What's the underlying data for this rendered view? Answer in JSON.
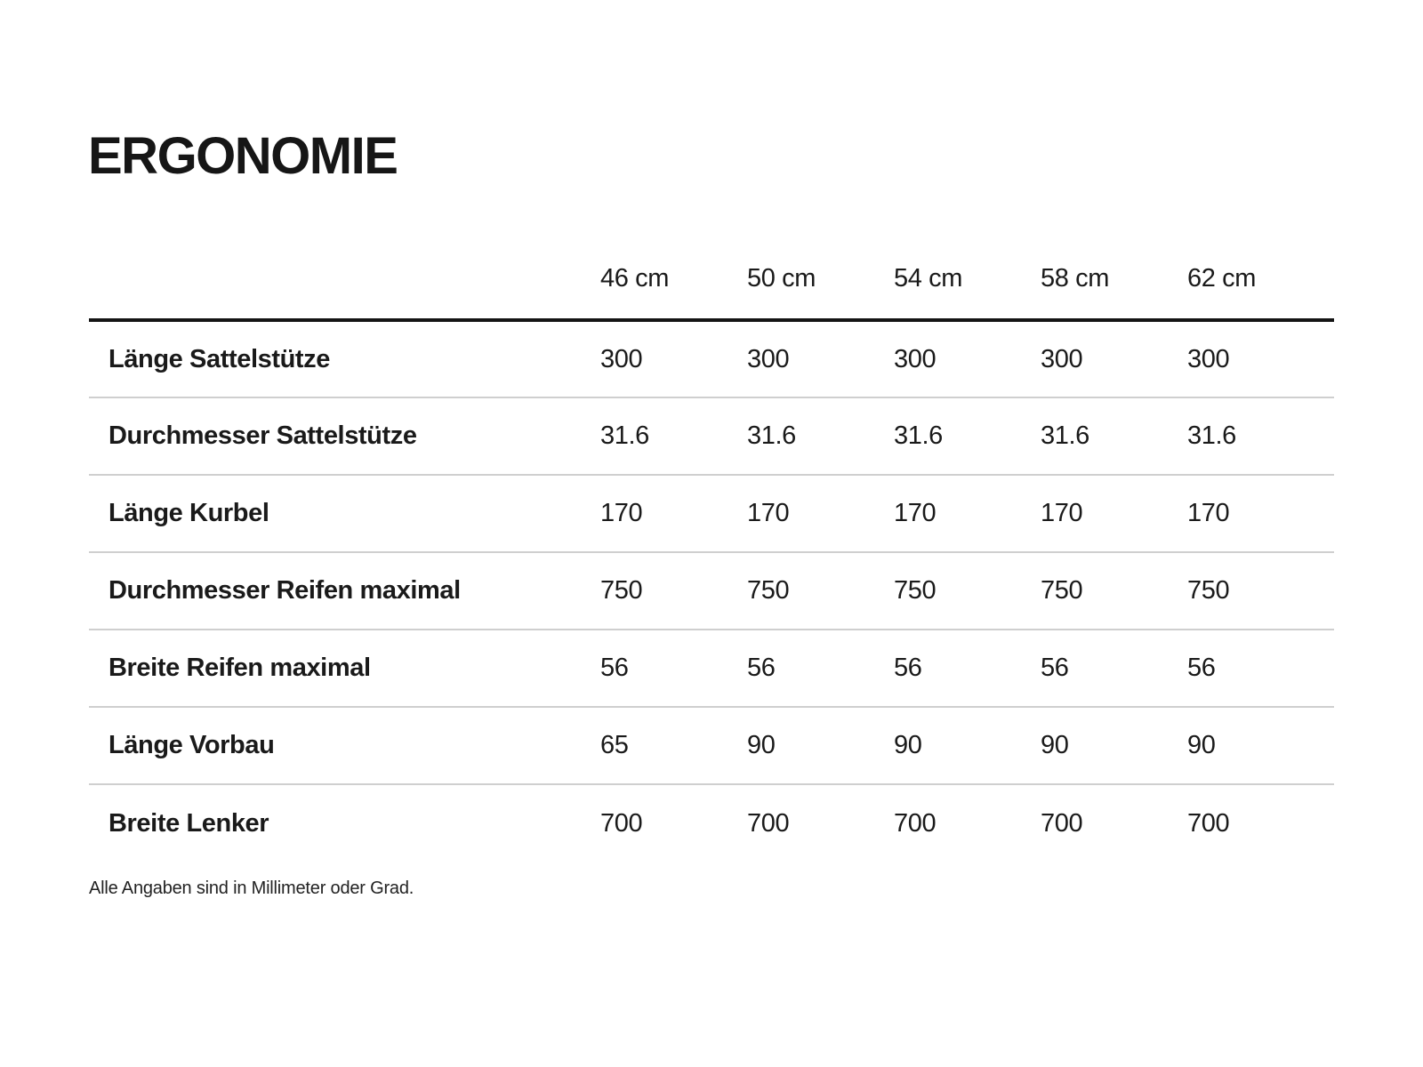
{
  "chart_data": {
    "type": "table",
    "title": "ERGONOMIE",
    "columns": [
      "46 cm",
      "50 cm",
      "54 cm",
      "58 cm",
      "62 cm"
    ],
    "rows": [
      {
        "label": "Länge Sattelstütze",
        "values": [
          "300",
          "300",
          "300",
          "300",
          "300"
        ]
      },
      {
        "label": "Durchmesser Sattelstütze",
        "values": [
          "31.6",
          "31.6",
          "31.6",
          "31.6",
          "31.6"
        ]
      },
      {
        "label": "Länge Kurbel",
        "values": [
          "170",
          "170",
          "170",
          "170",
          "170"
        ]
      },
      {
        "label": "Durchmesser Reifen maximal",
        "values": [
          "750",
          "750",
          "750",
          "750",
          "750"
        ]
      },
      {
        "label": "Breite Reifen maximal",
        "values": [
          "56",
          "56",
          "56",
          "56",
          "56"
        ]
      },
      {
        "label": "Länge Vorbau",
        "values": [
          "65",
          "90",
          "90",
          "90",
          "90"
        ]
      },
      {
        "label": "Breite Lenker",
        "values": [
          "700",
          "700",
          "700",
          "700",
          "700"
        ]
      }
    ],
    "footnote": "Alle Angaben sind in Millimeter oder Grad.",
    "layout": {
      "header_rule": "thick-black-below-header",
      "row_dividers": "light-gray",
      "alignment": "left"
    }
  },
  "colors": {
    "background": "#ffffff",
    "text": "#1a1a1a",
    "header_rule": "#141414",
    "row_divider": "#cfcfcf"
  }
}
